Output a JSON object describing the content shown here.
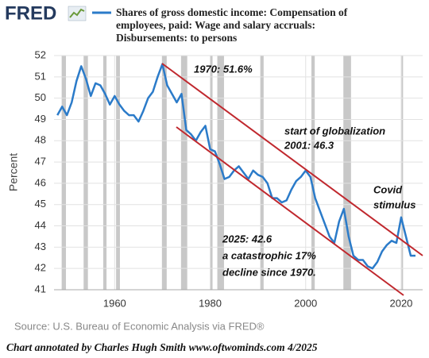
{
  "chart_data": {
    "type": "line",
    "logo": "FRED",
    "y_label": "Percent",
    "source": "Source: U.S. Bureau of Economic Analysis via FRED®",
    "footer": "Chart annotated by Charles Hugh Smith  www.oftwominds.com  4/2025",
    "x": [
      1948,
      1949,
      1950,
      1951,
      1952,
      1953,
      1954,
      1955,
      1956,
      1957,
      1958,
      1959,
      1960,
      1961,
      1962,
      1963,
      1964,
      1965,
      1966,
      1967,
      1968,
      1969,
      1970,
      1971,
      1972,
      1973,
      1974,
      1975,
      1976,
      1977,
      1978,
      1979,
      1980,
      1981,
      1982,
      1983,
      1984,
      1985,
      1986,
      1987,
      1988,
      1989,
      1990,
      1991,
      1992,
      1993,
      1994,
      1995,
      1996,
      1997,
      1998,
      1999,
      2000,
      2001,
      2002,
      2003,
      2004,
      2005,
      2006,
      2007,
      2008,
      2009,
      2010,
      2011,
      2012,
      2013,
      2014,
      2015,
      2016,
      2017,
      2018,
      2019,
      2020,
      2021,
      2022,
      2023
    ],
    "series": [
      {
        "name": "Shares of gross domestic income: Compensation of employees, paid: Wage and salary accruals: Disbursements: to persons",
        "color": "#2b7bc9",
        "values": [
          49.2,
          49.6,
          49.2,
          49.8,
          50.8,
          51.5,
          50.9,
          50.1,
          50.7,
          50.6,
          50.2,
          49.7,
          50.1,
          49.7,
          49.4,
          49.2,
          49.2,
          48.9,
          49.4,
          50.0,
          50.3,
          51.0,
          51.6,
          50.6,
          50.2,
          49.8,
          50.2,
          48.5,
          48.3,
          48.0,
          48.4,
          48.7,
          47.6,
          47.5,
          46.9,
          46.2,
          46.3,
          46.6,
          46.8,
          46.5,
          46.2,
          46.6,
          46.4,
          46.3,
          46.0,
          45.3,
          45.3,
          45.1,
          45.2,
          45.7,
          46.1,
          46.3,
          46.6,
          46.3,
          45.3,
          44.7,
          44.1,
          43.5,
          43.2,
          44.2,
          44.8,
          43.5,
          42.6,
          42.4,
          42.4,
          42.1,
          42.0,
          42.3,
          42.8,
          43.1,
          43.3,
          43.2,
          44.4,
          43.5,
          42.6,
          42.6
        ]
      }
    ],
    "recessions": [
      [
        1948.9,
        1949.8
      ],
      [
        1953.5,
        1954.4
      ],
      [
        1957.6,
        1958.3
      ],
      [
        1960.3,
        1961.1
      ],
      [
        1969.9,
        1970.9
      ],
      [
        1973.9,
        1975.2
      ],
      [
        1980.0,
        1980.5
      ],
      [
        1981.5,
        1982.9
      ],
      [
        1990.5,
        1991.2
      ],
      [
        2001.2,
        2001.9
      ],
      [
        2007.9,
        2009.5
      ],
      [
        2020.1,
        2020.4
      ]
    ],
    "xlim": [
      1947.3,
      2024.5
    ],
    "ylim": [
      41,
      52
    ],
    "xticks": [
      1960,
      1980,
      2000,
      2020
    ],
    "yticks": [
      41,
      42,
      43,
      44,
      45,
      46,
      47,
      48,
      49,
      50,
      51,
      52
    ],
    "grid": true,
    "annotations": [
      "1970: 51.6%",
      "start of globalization",
      "2001:  46.3",
      "Covid",
      "stimulus",
      "2025: 42.6",
      "a catastrophic  17%",
      "decline since 1970."
    ]
  }
}
